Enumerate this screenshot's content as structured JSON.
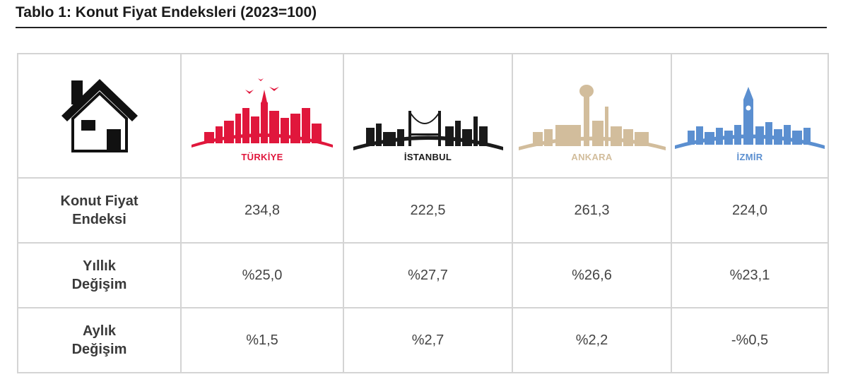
{
  "title": "Tablo 1: Konut Fiyat Endeksleri (2023=100)",
  "header": {
    "icon": "house-icon",
    "regions": [
      {
        "label": "TÜRKİYE",
        "color": "#e0173c",
        "icon": "turkiye-skyline-icon"
      },
      {
        "label": "İSTANBUL",
        "color": "#1a1a1a",
        "icon": "istanbul-skyline-icon"
      },
      {
        "label": "ANKARA",
        "color": "#d2bd9c",
        "icon": "ankara-skyline-icon"
      },
      {
        "label": "İZMİR",
        "color": "#5b8fd0",
        "icon": "izmir-skyline-icon"
      }
    ]
  },
  "rows": [
    {
      "label_line1": "Konut Fiyat",
      "label_line2": "Endeksi",
      "values": [
        "234,8",
        "222,5",
        "261,3",
        "224,0"
      ]
    },
    {
      "label_line1": "Yıllık",
      "label_line2": "Değişim",
      "values": [
        "%25,0",
        "%27,7",
        "%26,6",
        "%23,1"
      ]
    },
    {
      "label_line1": "Aylık",
      "label_line2": "Değişim",
      "values": [
        "%1,5",
        "%2,7",
        "%2,2",
        "-%0,5"
      ]
    }
  ]
}
